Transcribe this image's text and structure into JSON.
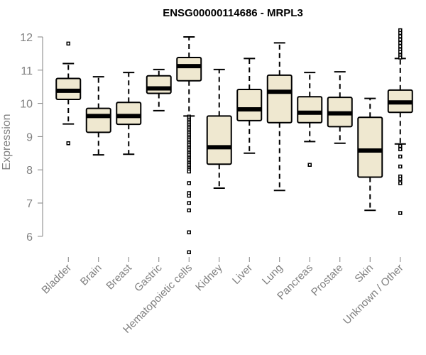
{
  "chart_data": {
    "type": "box",
    "title": "ENSG00000114686 - MRPL3",
    "xlabel": "",
    "ylabel": "Expression",
    "ylim": [
      5.4,
      12.15
    ],
    "yticks": [
      6,
      7,
      8,
      9,
      10,
      11,
      12
    ],
    "box_fill": "#efe8d0",
    "categories": [
      "Bladder",
      "Brain",
      "Breast",
      "Gastric",
      "Hematopoietic cells",
      "Kidney",
      "Liver",
      "Lung",
      "Pancreas",
      "Prostate",
      "Skin",
      "Unknown / Other"
    ],
    "boxes": [
      {
        "category": "Bladder",
        "whisker_low": 9.38,
        "q1": 10.12,
        "median": 10.38,
        "q3": 10.75,
        "whisker_high": 11.2,
        "outliers": [
          11.8,
          8.8
        ]
      },
      {
        "category": "Brain",
        "whisker_low": 8.45,
        "q1": 9.13,
        "median": 9.62,
        "q3": 9.85,
        "whisker_high": 10.8,
        "outliers": []
      },
      {
        "category": "Breast",
        "whisker_low": 8.47,
        "q1": 9.37,
        "median": 9.62,
        "q3": 10.03,
        "whisker_high": 10.93,
        "outliers": []
      },
      {
        "category": "Gastric",
        "whisker_low": 9.78,
        "q1": 10.3,
        "median": 10.45,
        "q3": 10.83,
        "whisker_high": 11.02,
        "outliers": []
      },
      {
        "category": "Hematopoietic cells",
        "whisker_low": 9.62,
        "q1": 10.68,
        "median": 11.12,
        "q3": 11.38,
        "whisker_high": 12.0,
        "outliers": [
          9.6,
          9.55,
          9.5,
          9.45,
          9.4,
          9.35,
          9.3,
          9.25,
          9.2,
          9.15,
          9.1,
          9.05,
          9.0,
          8.95,
          8.9,
          8.85,
          8.8,
          8.75,
          8.7,
          8.65,
          8.6,
          8.55,
          8.5,
          8.45,
          8.4,
          8.35,
          8.3,
          8.25,
          8.2,
          8.15,
          8.1,
          8.05,
          8.0,
          7.95,
          7.6,
          7.3,
          7.22,
          7.0,
          6.78,
          6.12,
          5.52
        ]
      },
      {
        "category": "Kidney",
        "whisker_low": 7.45,
        "q1": 8.17,
        "median": 8.68,
        "q3": 9.62,
        "whisker_high": 11.02,
        "outliers": []
      },
      {
        "category": "Liver",
        "whisker_low": 8.5,
        "q1": 9.48,
        "median": 9.82,
        "q3": 10.42,
        "whisker_high": 11.35,
        "outliers": []
      },
      {
        "category": "Lung",
        "whisker_low": 7.38,
        "q1": 9.42,
        "median": 10.35,
        "q3": 10.85,
        "whisker_high": 11.82,
        "outliers": []
      },
      {
        "category": "Pancreas",
        "whisker_low": 8.85,
        "q1": 9.42,
        "median": 9.72,
        "q3": 10.2,
        "whisker_high": 10.93,
        "outliers": [
          8.15
        ]
      },
      {
        "category": "Prostate",
        "whisker_low": 8.8,
        "q1": 9.3,
        "median": 9.7,
        "q3": 10.18,
        "whisker_high": 10.95,
        "outliers": []
      },
      {
        "category": "Skin",
        "whisker_low": 6.78,
        "q1": 7.78,
        "median": 8.58,
        "q3": 9.58,
        "whisker_high": 10.15,
        "outliers": []
      },
      {
        "category": "Unknown / Other",
        "whisker_low": 8.78,
        "q1": 9.73,
        "median": 10.03,
        "q3": 10.4,
        "whisker_high": 11.35,
        "outliers": [
          12.2,
          12.12,
          12.02,
          11.92,
          11.82,
          11.72,
          11.62,
          11.55,
          11.45,
          11.38,
          8.72,
          8.62,
          8.4,
          8.1,
          7.8,
          7.72,
          7.6,
          6.7
        ]
      }
    ]
  }
}
